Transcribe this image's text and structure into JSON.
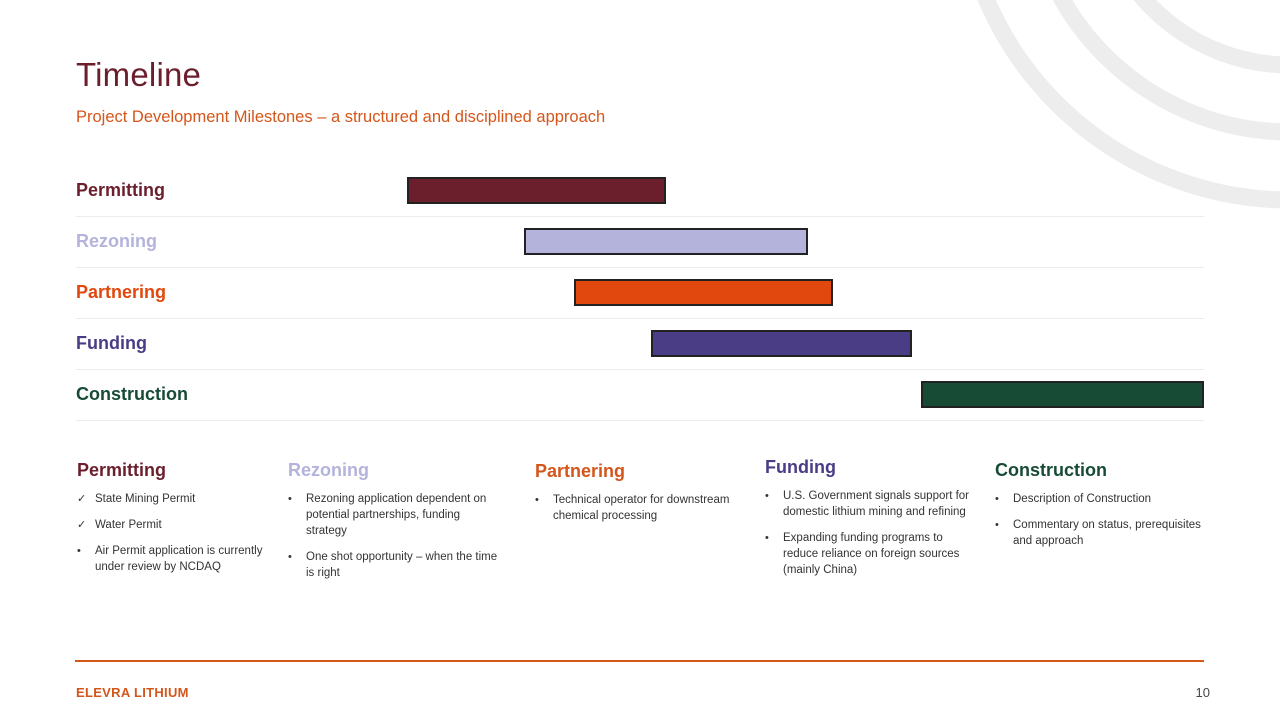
{
  "slide": {
    "title": "Timeline",
    "subtitle": "Project Development Milestones – a structured and disciplined approach"
  },
  "gantt": [
    {
      "label": "Permitting",
      "color": "#6b1f2d",
      "start": 0.159,
      "end": 0.433
    },
    {
      "label": "Rezoning",
      "color": "#b3b3dc",
      "start": 0.283,
      "end": 0.582
    },
    {
      "label": "Partnering",
      "color": "#e0480d",
      "start": 0.335,
      "end": 0.609
    },
    {
      "label": "Funding",
      "color": "#4b3d85",
      "start": 0.417,
      "end": 0.692
    },
    {
      "label": "Construction",
      "color": "#174b35",
      "start": 0.701,
      "end": 1.0
    }
  ],
  "details": [
    {
      "title": "Permitting",
      "color": "#6b1f2d",
      "items": [
        {
          "marker": "check",
          "text": "State Mining Permit"
        },
        {
          "marker": "check",
          "text": "Water Permit"
        },
        {
          "marker": "bullet",
          "text": "Air Permit application is currently under review by NCDAQ"
        }
      ]
    },
    {
      "title": "Rezoning",
      "color": "#b3b3dc",
      "items": [
        {
          "marker": "bullet",
          "text": "Rezoning application dependent on potential partnerships, funding strategy"
        },
        {
          "marker": "bullet",
          "text": "One shot opportunity – when the time is right"
        }
      ]
    },
    {
      "title": "Partnering",
      "color": "#d4561b",
      "items": [
        {
          "marker": "bullet",
          "text": "Technical operator for downstream chemical processing"
        }
      ]
    },
    {
      "title": "Funding",
      "color": "#4b3d85",
      "items": [
        {
          "marker": "bullet",
          "text": "U.S. Government signals support for domestic lithium mining and refining"
        },
        {
          "marker": "bullet",
          "text": "Expanding funding programs to reduce reliance on foreign sources (mainly China)"
        }
      ]
    },
    {
      "title": "Construction",
      "color": "#174b35",
      "items": [
        {
          "marker": "bullet",
          "text": "Description of Construction"
        },
        {
          "marker": "bullet",
          "text": "Commentary on status, prerequisites and approach"
        }
      ]
    }
  ],
  "footer": {
    "brand": "ELEVRA LITHIUM",
    "page_number": "10"
  },
  "icons": {
    "check": "check-icon",
    "bullet": "bullet-icon",
    "decoration": "concentric-arcs-decoration"
  }
}
